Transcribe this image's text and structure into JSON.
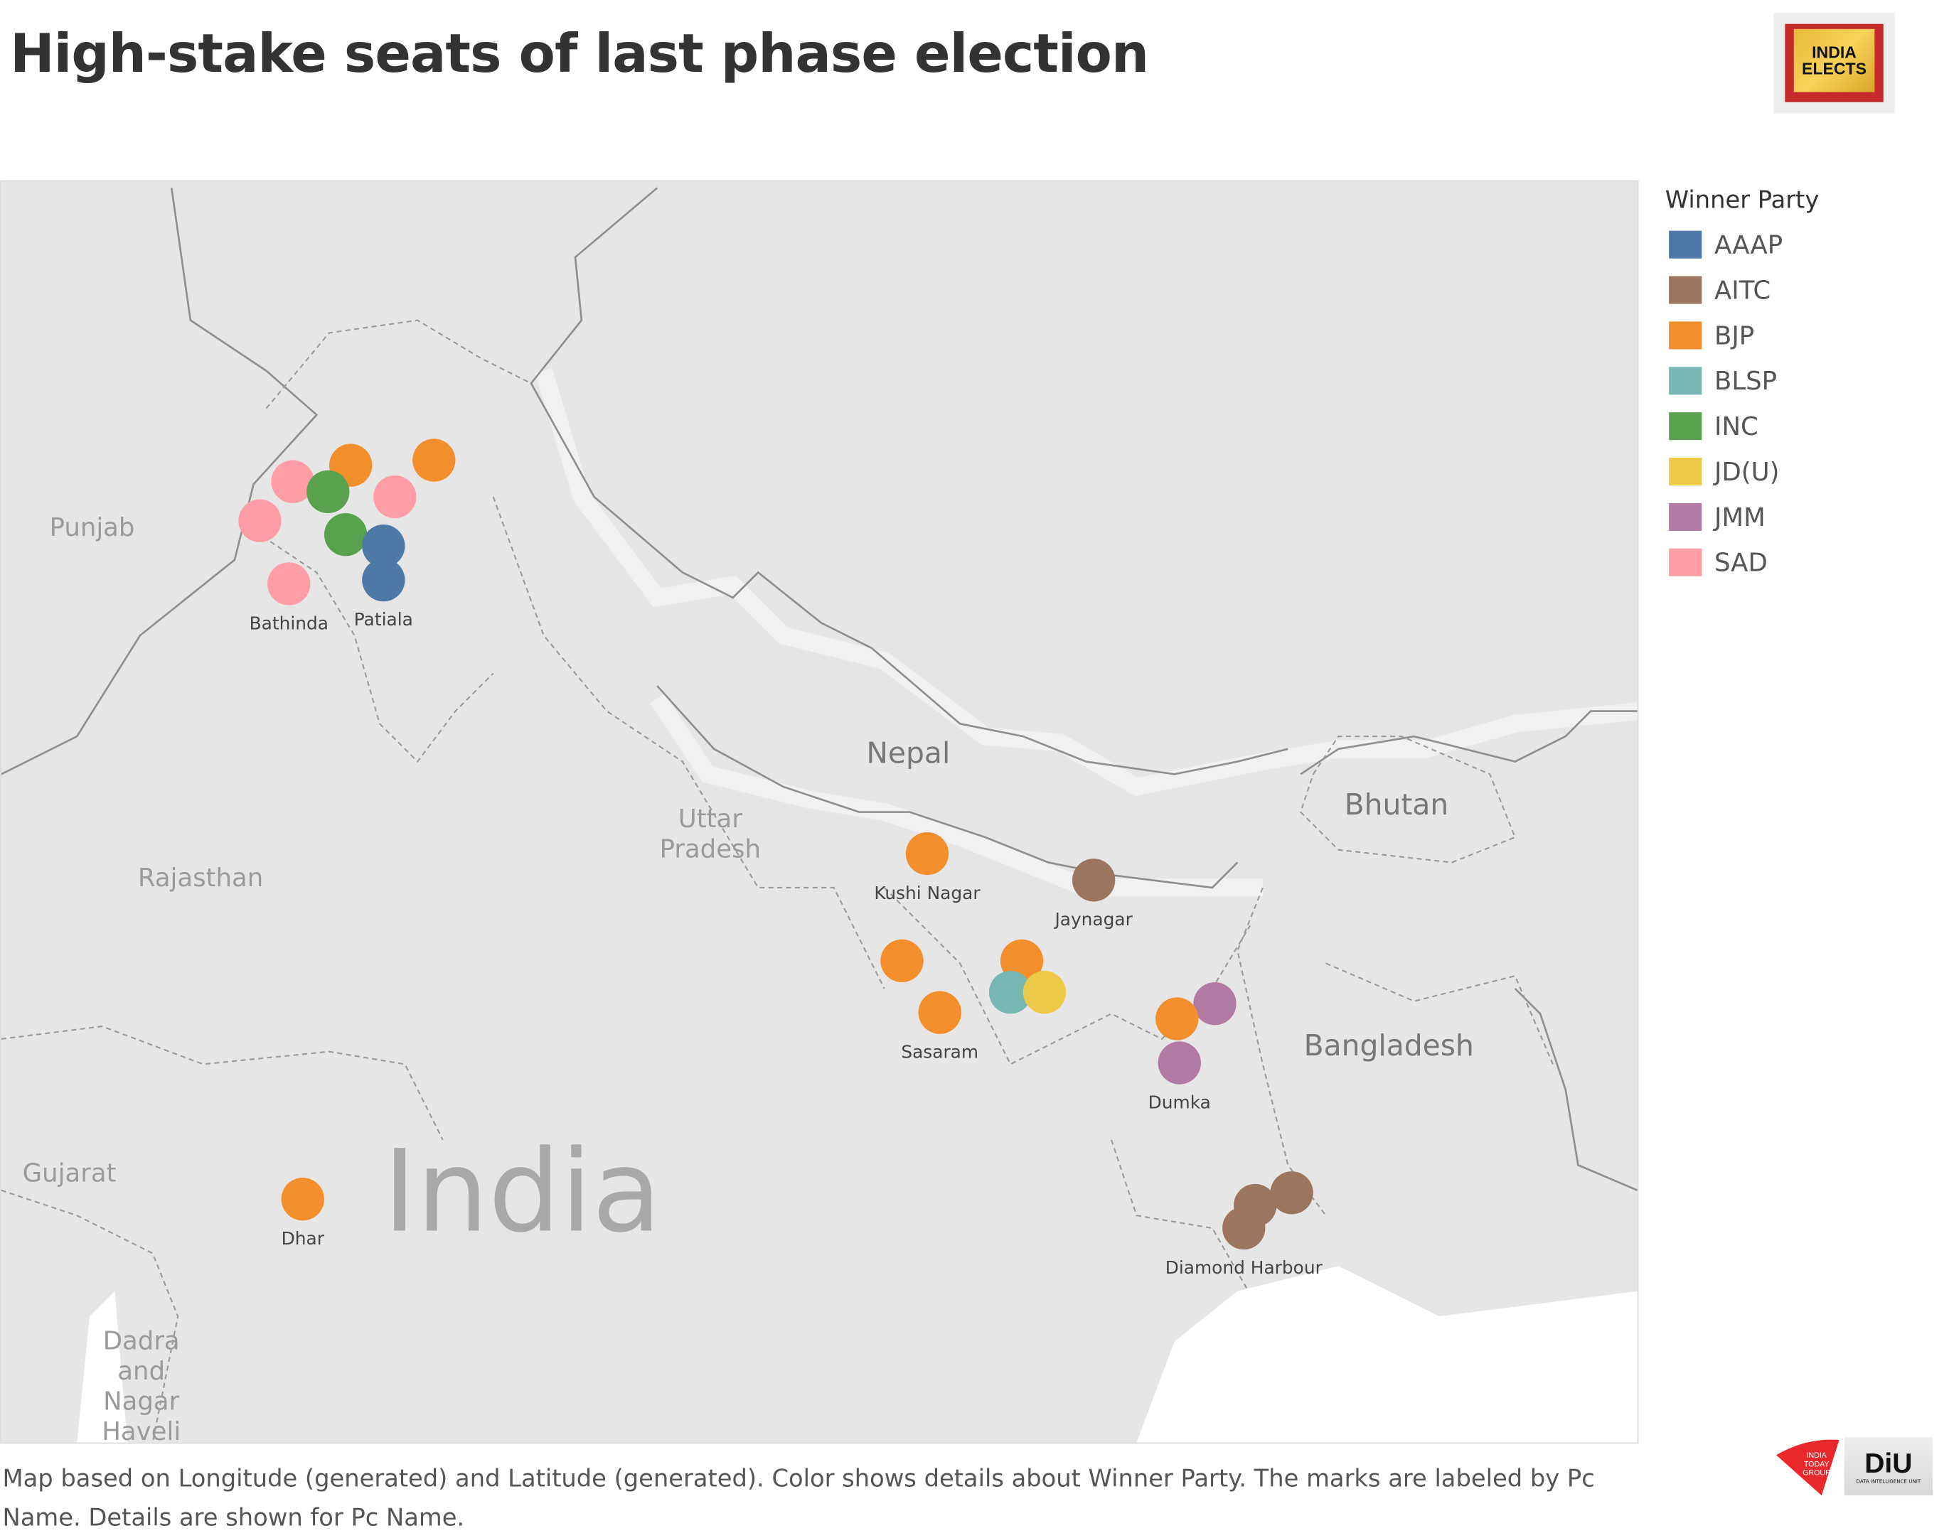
{
  "title": "High-stake seats of last phase election",
  "logos": {
    "india_elects": "INDIA ELECTS",
    "india_today": "INDIA TODAY GROUP",
    "diu": "DiU",
    "diu_sub": "DATA INTELLIGENCE UNIT"
  },
  "map_places": {
    "punjab": "Punjab",
    "rajasthan": "Rajasthan",
    "uttar_pradesh": "Uttar Pradesh",
    "nepal": "Nepal",
    "bhutan": "Bhutan",
    "bangladesh": "Bangladesh",
    "gujarat": "Gujarat",
    "india": "India",
    "dadra": "Dadra and Nagar Haveli"
  },
  "legend": {
    "title": "Winner Party",
    "items": [
      {
        "party": "AAAP",
        "color": "#4e79a7"
      },
      {
        "party": "AITC",
        "color": "#9c755f"
      },
      {
        "party": "BJP",
        "color": "#f28e2b"
      },
      {
        "party": "BLSP",
        "color": "#76b7b2"
      },
      {
        "party": "INC",
        "color": "#59a14f"
      },
      {
        "party": "JD(U)",
        "color": "#edc948"
      },
      {
        "party": "JMM",
        "color": "#b07aa1"
      },
      {
        "party": "SAD",
        "color": "#ff9da7"
      }
    ]
  },
  "marks": [
    {
      "party": "SAD",
      "label": ""
    },
    {
      "party": "BJP",
      "label": ""
    },
    {
      "party": "BJP",
      "label": ""
    },
    {
      "party": "INC",
      "label": ""
    },
    {
      "party": "SAD",
      "label": ""
    },
    {
      "party": "SAD",
      "label": ""
    },
    {
      "party": "INC",
      "label": ""
    },
    {
      "party": "AAAP",
      "label": ""
    },
    {
      "party": "AAAP",
      "label": "Patiala"
    },
    {
      "party": "SAD",
      "label": "Bathinda"
    },
    {
      "party": "BJP",
      "label": "Kushi Nagar"
    },
    {
      "party": "AITC",
      "label": "Jaynagar"
    },
    {
      "party": "BJP",
      "label": ""
    },
    {
      "party": "BJP",
      "label": ""
    },
    {
      "party": "BLSP",
      "label": ""
    },
    {
      "party": "JD(U)",
      "label": ""
    },
    {
      "party": "BJP",
      "label": "Sasaram"
    },
    {
      "party": "JMM",
      "label": ""
    },
    {
      "party": "BJP",
      "label": ""
    },
    {
      "party": "JMM",
      "label": "Dumka"
    },
    {
      "party": "AITC",
      "label": ""
    },
    {
      "party": "AITC",
      "label": ""
    },
    {
      "party": "AITC",
      "label": "Diamond Harbour"
    },
    {
      "party": "BJP",
      "label": "Dhar"
    }
  ],
  "caption": "Map based on Longitude (generated) and Latitude (generated).  Color shows details about Winner Party.  The marks are labeled by Pc Name.  Details are shown for Pc Name."
}
